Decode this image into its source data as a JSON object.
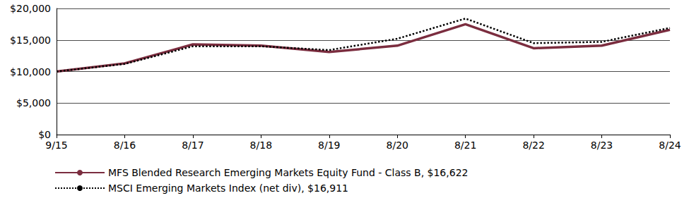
{
  "chart_data": {
    "type": "line",
    "categories": [
      "9/15",
      "8/16",
      "8/17",
      "8/18",
      "8/19",
      "8/20",
      "8/21",
      "8/22",
      "8/23",
      "8/24"
    ],
    "series": [
      {
        "name": "MFS Blended Research Emerging Markets Equity Fund - Class B, $16,622",
        "color": "#7b2d3f",
        "line_style": "solid",
        "values": [
          10000,
          11300,
          14300,
          14100,
          13100,
          14100,
          17500,
          13700,
          14100,
          16622
        ]
      },
      {
        "name": "MSCI Emerging Markets Index (net div), $16,911",
        "color": "#000000",
        "line_style": "dotted",
        "values": [
          10000,
          11200,
          14000,
          14000,
          13400,
          15200,
          18400,
          14500,
          14700,
          16911
        ]
      }
    ],
    "ylim": [
      0,
      20000
    ],
    "yticks": [
      {
        "value": 0,
        "label": "$0"
      },
      {
        "value": 5000,
        "label": "$5,000"
      },
      {
        "value": 10000,
        "label": "$10,000"
      },
      {
        "value": 15000,
        "label": "$15,000"
      },
      {
        "value": 20000,
        "label": "$20,000"
      }
    ],
    "grid": true,
    "legend": "bottom-left"
  }
}
